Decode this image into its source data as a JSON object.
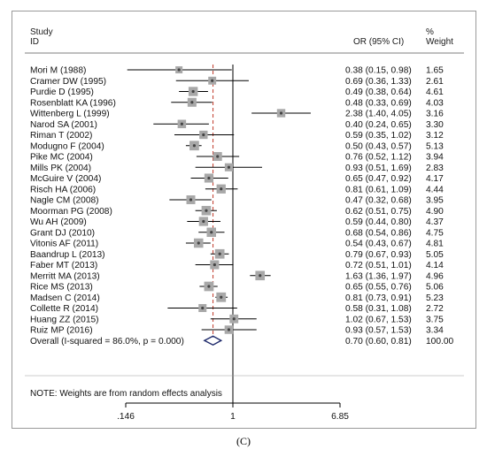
{
  "chart_data": {
    "type": "forest",
    "header": {
      "study_label_1": "Study",
      "study_label_2": "ID",
      "or_label": "OR (95% CI)",
      "weight_label_1": "%",
      "weight_label_2": "Weight"
    },
    "x_scale": "log",
    "xlim": [
      0.146,
      6.85
    ],
    "xticks": [
      {
        "value": 0.146,
        "label": ".146"
      },
      {
        "value": 1,
        "label": "1"
      },
      {
        "value": 6.85,
        "label": "6.85"
      }
    ],
    "null_line": 1,
    "pooled_line": 0.7,
    "studies": [
      {
        "name": "Mori M (1988)",
        "or": 0.38,
        "lo": 0.15,
        "hi": 0.98,
        "or_text": "0.38 (0.15, 0.98)",
        "weight": "1.65"
      },
      {
        "name": "Cramer DW (1995)",
        "or": 0.69,
        "lo": 0.36,
        "hi": 1.33,
        "or_text": "0.69 (0.36, 1.33)",
        "weight": "2.61"
      },
      {
        "name": "Purdie D (1995)",
        "or": 0.49,
        "lo": 0.38,
        "hi": 0.64,
        "or_text": "0.49 (0.38, 0.64)",
        "weight": "4.61"
      },
      {
        "name": "Rosenblatt KA (1996)",
        "or": 0.48,
        "lo": 0.33,
        "hi": 0.69,
        "or_text": "0.48 (0.33, 0.69)",
        "weight": "4.03"
      },
      {
        "name": "Wittenberg L (1999)",
        "or": 2.38,
        "lo": 1.4,
        "hi": 4.05,
        "or_text": "2.38 (1.40, 4.05)",
        "weight": "3.16"
      },
      {
        "name": "Narod SA (2001)",
        "or": 0.4,
        "lo": 0.24,
        "hi": 0.65,
        "or_text": "0.40 (0.24, 0.65)",
        "weight": "3.30"
      },
      {
        "name": "Riman T (2002)",
        "or": 0.59,
        "lo": 0.35,
        "hi": 1.02,
        "or_text": "0.59 (0.35, 1.02)",
        "weight": "3.12"
      },
      {
        "name": "Modugno F (2004)",
        "or": 0.5,
        "lo": 0.43,
        "hi": 0.57,
        "or_text": "0.50 (0.43, 0.57)",
        "weight": "5.13"
      },
      {
        "name": "Pike MC (2004)",
        "or": 0.76,
        "lo": 0.52,
        "hi": 1.12,
        "or_text": "0.76 (0.52, 1.12)",
        "weight": "3.94"
      },
      {
        "name": "Mills PK (2004)",
        "or": 0.93,
        "lo": 0.51,
        "hi": 1.69,
        "or_text": "0.93 (0.51, 1.69)",
        "weight": "2.83"
      },
      {
        "name": "McGuire V (2004)",
        "or": 0.65,
        "lo": 0.47,
        "hi": 0.92,
        "or_text": "0.65 (0.47, 0.92)",
        "weight": "4.17"
      },
      {
        "name": "Risch HA (2006)",
        "or": 0.81,
        "lo": 0.61,
        "hi": 1.09,
        "or_text": "0.81 (0.61, 1.09)",
        "weight": "4.44"
      },
      {
        "name": "Nagle CM (2008)",
        "or": 0.47,
        "lo": 0.32,
        "hi": 0.68,
        "or_text": "0.47 (0.32, 0.68)",
        "weight": "3.95"
      },
      {
        "name": "Moorman PG (2008)",
        "or": 0.62,
        "lo": 0.51,
        "hi": 0.75,
        "or_text": "0.62 (0.51, 0.75)",
        "weight": "4.90"
      },
      {
        "name": "Wu AH (2009)",
        "or": 0.59,
        "lo": 0.44,
        "hi": 0.8,
        "or_text": "0.59 (0.44, 0.80)",
        "weight": "4.37"
      },
      {
        "name": "Grant DJ (2010)",
        "or": 0.68,
        "lo": 0.54,
        "hi": 0.86,
        "or_text": "0.68 (0.54, 0.86)",
        "weight": "4.75"
      },
      {
        "name": "Vitonis AF (2011)",
        "or": 0.54,
        "lo": 0.43,
        "hi": 0.67,
        "or_text": "0.54 (0.43, 0.67)",
        "weight": "4.81"
      },
      {
        "name": "Baandrup L (2013)",
        "or": 0.79,
        "lo": 0.67,
        "hi": 0.93,
        "or_text": "0.79 (0.67, 0.93)",
        "weight": "5.05"
      },
      {
        "name": "Faber MT (2013)",
        "or": 0.72,
        "lo": 0.51,
        "hi": 1.01,
        "or_text": "0.72 (0.51, 1.01)",
        "weight": "4.14"
      },
      {
        "name": "Merritt MA (2013)",
        "or": 1.63,
        "lo": 1.36,
        "hi": 1.97,
        "or_text": "1.63 (1.36, 1.97)",
        "weight": "4.96"
      },
      {
        "name": "Rice MS (2013)",
        "or": 0.65,
        "lo": 0.55,
        "hi": 0.76,
        "or_text": "0.65 (0.55, 0.76)",
        "weight": "5.06"
      },
      {
        "name": "Madsen C (2014)",
        "or": 0.81,
        "lo": 0.73,
        "hi": 0.91,
        "or_text": "0.81 (0.73, 0.91)",
        "weight": "5.23"
      },
      {
        "name": "Collette R (2014)",
        "or": 0.58,
        "lo": 0.31,
        "hi": 1.08,
        "or_text": "0.58 (0.31, 1.08)",
        "weight": "2.72"
      },
      {
        "name": "Huang ZZ (2015)",
        "or": 1.02,
        "lo": 0.67,
        "hi": 1.53,
        "or_text": "1.02 (0.67, 1.53)",
        "weight": "3.75"
      },
      {
        "name": "Ruiz MP (2016)",
        "or": 0.93,
        "lo": 0.57,
        "hi": 1.53,
        "or_text": "0.93 (0.57, 1.53)",
        "weight": "3.34"
      }
    ],
    "overall": {
      "label": "Overall  (I-squared = 86.0%, p = 0.000)",
      "or": 0.7,
      "lo": 0.6,
      "hi": 0.81,
      "or_text": "0.70 (0.60, 0.81)",
      "weight": "100.00"
    },
    "note": "NOTE: Weights are from random effects analysis",
    "panel_label": "(C)"
  },
  "colors": {
    "null_line": "#000000",
    "pooled_line": "#c0392b",
    "marker": "#444444",
    "square": "#a8a8a8",
    "diamond": "#1f2a6b",
    "frame": "#9a9a9a"
  }
}
